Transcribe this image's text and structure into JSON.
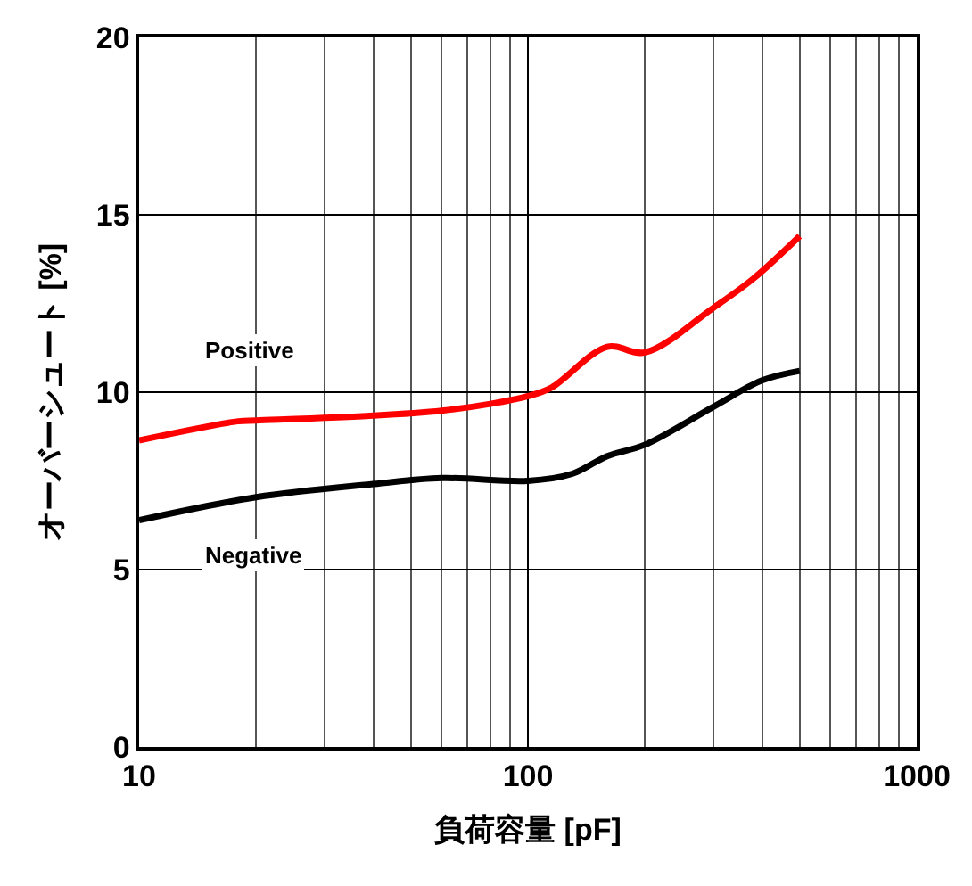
{
  "chart_data": {
    "type": "line",
    "xlabel": "負荷容量 [pF]",
    "ylabel": "オーバーシュート [%]",
    "log": "x",
    "grid": true,
    "legend": false,
    "marker": "none",
    "line_style": "solid",
    "xlim": [
      10,
      1000
    ],
    "xticks": [
      10,
      100,
      1000
    ],
    "ylim": [
      0,
      20
    ],
    "yticks": [
      0,
      5,
      10,
      15,
      20
    ],
    "series": [
      {
        "name": "Positive",
        "color": "#ff0000",
        "x": [
          10,
          18,
          20,
          40,
          60,
          80,
          100,
          115,
          160,
          200,
          300,
          380,
          500
        ],
        "values": [
          8.64,
          9.18,
          9.2,
          9.34,
          9.48,
          9.67,
          9.89,
          10.13,
          11.28,
          11.12,
          12.38,
          13.2,
          14.4
        ]
      },
      {
        "name": "Negative",
        "color": "#000000",
        "x": [
          10,
          20,
          40,
          60,
          100,
          130,
          160,
          200,
          300,
          400,
          500
        ],
        "values": [
          6.39,
          7.04,
          7.41,
          7.58,
          7.5,
          7.7,
          8.2,
          8.52,
          9.59,
          10.33,
          10.6
        ]
      }
    ]
  }
}
